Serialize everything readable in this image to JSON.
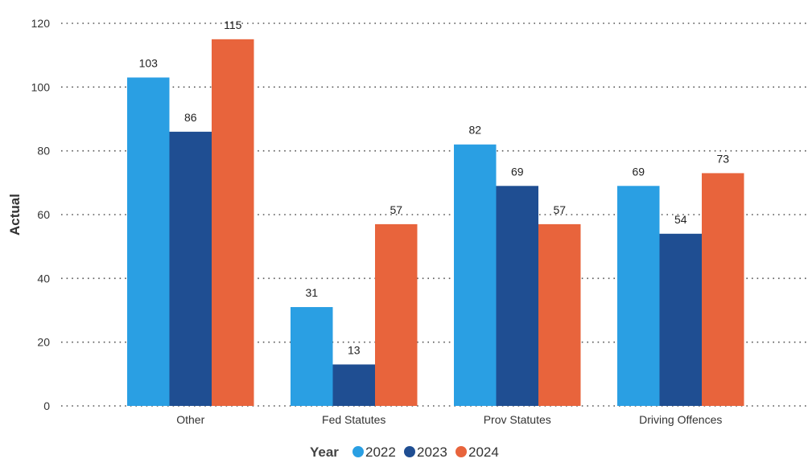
{
  "chart_data": {
    "type": "bar",
    "categories": [
      "Other",
      "Fed Statutes",
      "Prov Statutes",
      "Driving Offences"
    ],
    "series": [
      {
        "name": "2022",
        "values": [
          103,
          31,
          82,
          69
        ],
        "color": "#2a9fe3"
      },
      {
        "name": "2023",
        "values": [
          86,
          13,
          69,
          54
        ],
        "color": "#1f4e92"
      },
      {
        "name": "2024",
        "values": [
          115,
          57,
          57,
          73
        ],
        "color": "#e8643c"
      }
    ],
    "ylabel": "Actual",
    "xlabel": "",
    "ylim": [
      0,
      120
    ],
    "yticks": [
      0,
      20,
      40,
      60,
      80,
      100,
      120
    ],
    "grid": true,
    "legend": {
      "title": "Year",
      "position": "bottom-center"
    }
  }
}
